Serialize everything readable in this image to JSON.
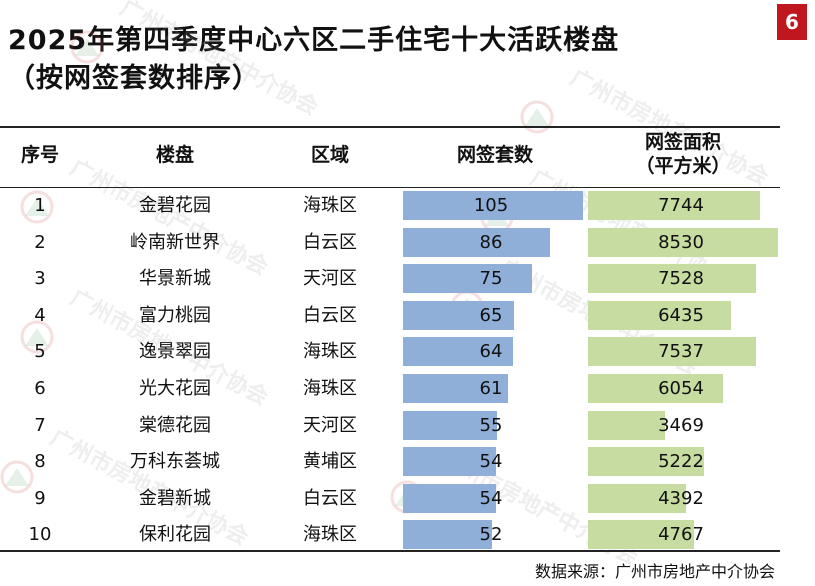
{
  "title_line1": "2025年第四季度中心六区二手住宅十大活跃楼盘",
  "title_line2": "（按网签套数排序）",
  "page_number": "6",
  "watermark_text": "广州市房地产中介协会",
  "colors": {
    "bar_units": "#8fafd9",
    "bar_area": "#c6dca0",
    "badge": "#c0161d"
  },
  "chart_data": {
    "type": "table",
    "columns": [
      "序号",
      "楼盘",
      "区域",
      "网签套数",
      "网签面积\n（平方米）"
    ],
    "rows": [
      {
        "rank": "1",
        "name": "金碧花园",
        "district": "海珠区",
        "units": 105,
        "area": 7744
      },
      {
        "rank": "2",
        "name": "岭南新世界",
        "district": "白云区",
        "units": 86,
        "area": 8530
      },
      {
        "rank": "3",
        "name": "华景新城",
        "district": "天河区",
        "units": 75,
        "area": 7528
      },
      {
        "rank": "4",
        "name": "富力桃园",
        "district": "白云区",
        "units": 65,
        "area": 6435
      },
      {
        "rank": "5",
        "name": "逸景翠园",
        "district": "海珠区",
        "units": 64,
        "area": 7537
      },
      {
        "rank": "6",
        "name": "光大花园",
        "district": "海珠区",
        "units": 61,
        "area": 6054
      },
      {
        "rank": "7",
        "name": "棠德花园",
        "district": "天河区",
        "units": 55,
        "area": 3469
      },
      {
        "rank": "8",
        "name": "万科东荟城",
        "district": "黄埔区",
        "units": 54,
        "area": 5222
      },
      {
        "rank": "9",
        "name": "金碧新城",
        "district": "白云区",
        "units": 54,
        "area": 4392
      },
      {
        "rank": "10",
        "name": "保利花园",
        "district": "海珠区",
        "units": 52,
        "area": 4767
      }
    ]
  },
  "source": "数据来源：广州市房地产中介协会"
}
